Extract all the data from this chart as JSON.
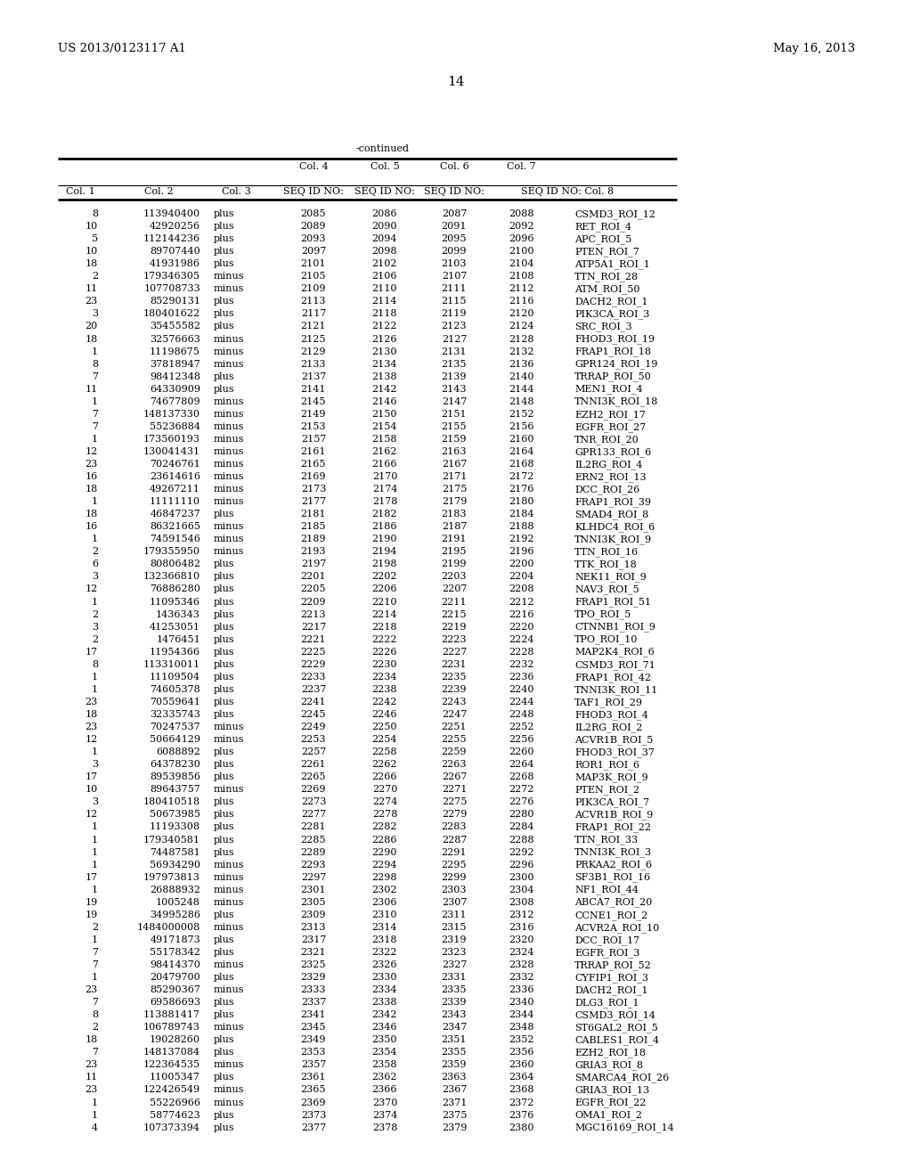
{
  "patent_number": "US 2013/0123117 A1",
  "date": "May 16, 2013",
  "page_number": "14",
  "continued_label": "-continued",
  "table_data": [
    [
      "8",
      "113940400",
      "plus",
      "2085",
      "2086",
      "2087",
      "2088",
      "CSMD3_ROI_12"
    ],
    [
      "10",
      "42920256",
      "plus",
      "2089",
      "2090",
      "2091",
      "2092",
      "RET_ROI_4"
    ],
    [
      "5",
      "112144236",
      "plus",
      "2093",
      "2094",
      "2095",
      "2096",
      "APC_ROI_5"
    ],
    [
      "10",
      "89707440",
      "plus",
      "2097",
      "2098",
      "2099",
      "2100",
      "PTEN_ROI_7"
    ],
    [
      "18",
      "41931986",
      "plus",
      "2101",
      "2102",
      "2103",
      "2104",
      "ATP5A1_ROI_1"
    ],
    [
      "2",
      "179346305",
      "minus",
      "2105",
      "2106",
      "2107",
      "2108",
      "TTN_ROI_28"
    ],
    [
      "11",
      "107708733",
      "minus",
      "2109",
      "2110",
      "2111",
      "2112",
      "ATM_ROI_50"
    ],
    [
      "23",
      "85290131",
      "plus",
      "2113",
      "2114",
      "2115",
      "2116",
      "DACH2_ROI_1"
    ],
    [
      "3",
      "180401622",
      "plus",
      "2117",
      "2118",
      "2119",
      "2120",
      "PIK3CA_ROI_3"
    ],
    [
      "20",
      "35455582",
      "plus",
      "2121",
      "2122",
      "2123",
      "2124",
      "SRC_ROI_3"
    ],
    [
      "18",
      "32576663",
      "minus",
      "2125",
      "2126",
      "2127",
      "2128",
      "FHOD3_ROI_19"
    ],
    [
      "1",
      "11198675",
      "minus",
      "2129",
      "2130",
      "2131",
      "2132",
      "FRAP1_ROI_18"
    ],
    [
      "8",
      "37818947",
      "minus",
      "2133",
      "2134",
      "2135",
      "2136",
      "GPR124_ROI_19"
    ],
    [
      "7",
      "98412348",
      "plus",
      "2137",
      "2138",
      "2139",
      "2140",
      "TRRAP_ROI_50"
    ],
    [
      "11",
      "64330909",
      "plus",
      "2141",
      "2142",
      "2143",
      "2144",
      "MEN1_ROI_4"
    ],
    [
      "1",
      "74677809",
      "minus",
      "2145",
      "2146",
      "2147",
      "2148",
      "TNNI3K_ROI_18"
    ],
    [
      "7",
      "148137330",
      "minus",
      "2149",
      "2150",
      "2151",
      "2152",
      "EZH2_ROI_17"
    ],
    [
      "7",
      "55236884",
      "minus",
      "2153",
      "2154",
      "2155",
      "2156",
      "EGFR_ROI_27"
    ],
    [
      "1",
      "173560193",
      "minus",
      "2157",
      "2158",
      "2159",
      "2160",
      "TNR_ROI_20"
    ],
    [
      "12",
      "130041431",
      "minus",
      "2161",
      "2162",
      "2163",
      "2164",
      "GPR133_ROI_6"
    ],
    [
      "23",
      "70246761",
      "minus",
      "2165",
      "2166",
      "2167",
      "2168",
      "IL2RG_ROI_4"
    ],
    [
      "16",
      "23614616",
      "minus",
      "2169",
      "2170",
      "2171",
      "2172",
      "ERN2_ROI_13"
    ],
    [
      "18",
      "49267211",
      "minus",
      "2173",
      "2174",
      "2175",
      "2176",
      "DCC_ROI_26"
    ],
    [
      "1",
      "11111110",
      "minus",
      "2177",
      "2178",
      "2179",
      "2180",
      "FRAP1_ROI_39"
    ],
    [
      "18",
      "46847237",
      "plus",
      "2181",
      "2182",
      "2183",
      "2184",
      "SMAD4_ROI_8"
    ],
    [
      "16",
      "86321665",
      "minus",
      "2185",
      "2186",
      "2187",
      "2188",
      "KLHDC4_ROI_6"
    ],
    [
      "1",
      "74591546",
      "minus",
      "2189",
      "2190",
      "2191",
      "2192",
      "TNNI3K_ROI_9"
    ],
    [
      "2",
      "179355950",
      "minus",
      "2193",
      "2194",
      "2195",
      "2196",
      "TTN_ROI_16"
    ],
    [
      "6",
      "80806482",
      "plus",
      "2197",
      "2198",
      "2199",
      "2200",
      "TTK_ROI_18"
    ],
    [
      "3",
      "132366810",
      "plus",
      "2201",
      "2202",
      "2203",
      "2204",
      "NEK11_ROI_9"
    ],
    [
      "12",
      "76886280",
      "plus",
      "2205",
      "2206",
      "2207",
      "2208",
      "NAV3_ROI_5"
    ],
    [
      "1",
      "11095346",
      "plus",
      "2209",
      "2210",
      "2211",
      "2212",
      "FRAP1_ROI_51"
    ],
    [
      "2",
      "1436343",
      "plus",
      "2213",
      "2214",
      "2215",
      "2216",
      "TPO_ROI_5"
    ],
    [
      "3",
      "41253051",
      "plus",
      "2217",
      "2218",
      "2219",
      "2220",
      "CTNNB1_ROI_9"
    ],
    [
      "2",
      "1476451",
      "plus",
      "2221",
      "2222",
      "2223",
      "2224",
      "TPO_ROI_10"
    ],
    [
      "17",
      "11954366",
      "plus",
      "2225",
      "2226",
      "2227",
      "2228",
      "MAP2K4_ROI_6"
    ],
    [
      "8",
      "113310011",
      "plus",
      "2229",
      "2230",
      "2231",
      "2232",
      "CSMD3_ROI_71"
    ],
    [
      "1",
      "11109504",
      "plus",
      "2233",
      "2234",
      "2235",
      "2236",
      "FRAP1_ROI_42"
    ],
    [
      "1",
      "74605378",
      "plus",
      "2237",
      "2238",
      "2239",
      "2240",
      "TNNI3K_ROI_11"
    ],
    [
      "23",
      "70559641",
      "plus",
      "2241",
      "2242",
      "2243",
      "2244",
      "TAF1_ROI_29"
    ],
    [
      "18",
      "32335743",
      "plus",
      "2245",
      "2246",
      "2247",
      "2248",
      "FHOD3_ROI_4"
    ],
    [
      "23",
      "70247537",
      "minus",
      "2249",
      "2250",
      "2251",
      "2252",
      "IL2RG_ROI_2"
    ],
    [
      "12",
      "50664129",
      "minus",
      "2253",
      "2254",
      "2255",
      "2256",
      "ACVR1B_ROI_5"
    ],
    [
      "1",
      "6088892",
      "plus",
      "2257",
      "2258",
      "2259",
      "2260",
      "FHOD3_ROI_37"
    ],
    [
      "3",
      "64378230",
      "plus",
      "2261",
      "2262",
      "2263",
      "2264",
      "ROR1_ROI_6"
    ],
    [
      "17",
      "89539856",
      "plus",
      "2265",
      "2266",
      "2267",
      "2268",
      "MAP3K_ROI_9"
    ],
    [
      "10",
      "89643757",
      "minus",
      "2269",
      "2270",
      "2271",
      "2272",
      "PTEN_ROI_2"
    ],
    [
      "3",
      "180410518",
      "plus",
      "2273",
      "2274",
      "2275",
      "2276",
      "PIK3CA_ROI_7"
    ],
    [
      "12",
      "50673985",
      "plus",
      "2277",
      "2278",
      "2279",
      "2280",
      "ACVR1B_ROI_9"
    ],
    [
      "1",
      "11193308",
      "plus",
      "2281",
      "2282",
      "2283",
      "2284",
      "FRAP1_ROI_22"
    ],
    [
      "1",
      "179340581",
      "plus",
      "2285",
      "2286",
      "2287",
      "2288",
      "TTN_ROI_33"
    ],
    [
      "1",
      "74487581",
      "plus",
      "2289",
      "2290",
      "2291",
      "2292",
      "TNNI3K_ROI_3"
    ],
    [
      "1",
      "56934290",
      "minus",
      "2293",
      "2294",
      "2295",
      "2296",
      "PRKAA2_ROI_6"
    ],
    [
      "17",
      "197973813",
      "minus",
      "2297",
      "2298",
      "2299",
      "2300",
      "SF3B1_ROI_16"
    ],
    [
      "1",
      "26888932",
      "minus",
      "2301",
      "2302",
      "2303",
      "2304",
      "NF1_ROI_44"
    ],
    [
      "19",
      "1005248",
      "minus",
      "2305",
      "2306",
      "2307",
      "2308",
      "ABCA7_ROI_20"
    ],
    [
      "19",
      "34995286",
      "plus",
      "2309",
      "2310",
      "2311",
      "2312",
      "CCNE1_ROI_2"
    ],
    [
      "2",
      "1484000008",
      "minus",
      "2313",
      "2314",
      "2315",
      "2316",
      "ACVR2A_ROI_10"
    ],
    [
      "1",
      "49171873",
      "plus",
      "2317",
      "2318",
      "2319",
      "2320",
      "DCC_ROI_17"
    ],
    [
      "7",
      "55178342",
      "plus",
      "2321",
      "2322",
      "2323",
      "2324",
      "EGFR_ROI_3"
    ],
    [
      "7",
      "98414370",
      "minus",
      "2325",
      "2326",
      "2327",
      "2328",
      "TRRAP_ROI_52"
    ],
    [
      "1",
      "20479700",
      "plus",
      "2329",
      "2330",
      "2331",
      "2332",
      "CYFIP1_ROI_3"
    ],
    [
      "23",
      "85290367",
      "minus",
      "2333",
      "2334",
      "2335",
      "2336",
      "DACH2_ROI_1"
    ],
    [
      "7",
      "69586693",
      "plus",
      "2337",
      "2338",
      "2339",
      "2340",
      "DLG3_ROI_1"
    ],
    [
      "8",
      "113881417",
      "plus",
      "2341",
      "2342",
      "2343",
      "2344",
      "CSMD3_ROI_14"
    ],
    [
      "2",
      "106789743",
      "minus",
      "2345",
      "2346",
      "2347",
      "2348",
      "ST6GAL2_ROI_5"
    ],
    [
      "18",
      "19028260",
      "plus",
      "2349",
      "2350",
      "2351",
      "2352",
      "CABLES1_ROI_4"
    ],
    [
      "7",
      "148137084",
      "plus",
      "2353",
      "2354",
      "2355",
      "2356",
      "EZH2_ROI_18"
    ],
    [
      "23",
      "122364535",
      "minus",
      "2357",
      "2358",
      "2359",
      "2360",
      "GRIA3_ROI_8"
    ],
    [
      "11",
      "11005347",
      "plus",
      "2361",
      "2362",
      "2363",
      "2364",
      "SMARCA4_ROI_26"
    ],
    [
      "23",
      "122426549",
      "minus",
      "2365",
      "2366",
      "2367",
      "2368",
      "GRIA3_ROI_13"
    ],
    [
      "1",
      "55226966",
      "minus",
      "2369",
      "2370",
      "2371",
      "2372",
      "EGFR_ROI_22"
    ],
    [
      "1",
      "58774623",
      "plus",
      "2373",
      "2374",
      "2375",
      "2376",
      "OMA1_ROI_2"
    ],
    [
      "4",
      "107373394",
      "plus",
      "2377",
      "2378",
      "2379",
      "2380",
      "MGC16169_ROI_14"
    ]
  ]
}
